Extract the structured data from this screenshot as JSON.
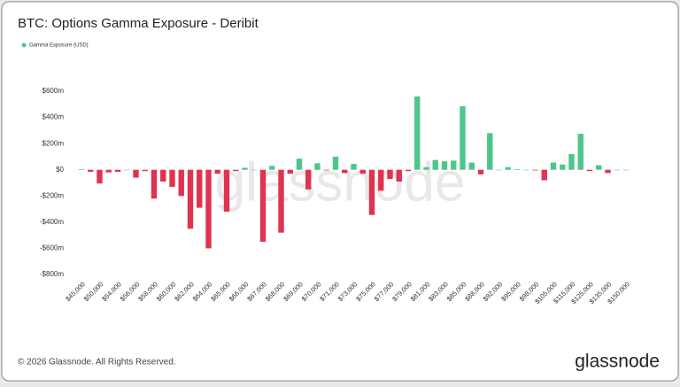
{
  "chart_data": {
    "type": "bar",
    "title": "BTC: Options Gamma Exposure - Deribit",
    "series": [
      {
        "name": "Gamma Exposure (USD)",
        "color": "#4dc68a",
        "values": [
          5,
          -15,
          -105,
          -20,
          -15,
          0,
          -60,
          -10,
          -220,
          -90,
          -130,
          -200,
          -450,
          -290,
          -600,
          -30,
          -320,
          -10,
          15,
          0,
          -550,
          30,
          -480,
          -30,
          85,
          -150,
          50,
          -5,
          100,
          -25,
          45,
          -30,
          -345,
          -160,
          -70,
          -90,
          -10,
          560,
          20,
          75,
          65,
          70,
          485,
          55,
          -35,
          280,
          0,
          20,
          5,
          0,
          -5,
          -80,
          55,
          40,
          120,
          275,
          -10,
          35,
          -25,
          0,
          0
        ]
      }
    ],
    "negative_color": "#e0334f",
    "categories": [
      "$45,000",
      null,
      "$50,000",
      null,
      "$54,000",
      null,
      "$56,000",
      null,
      "$58,000",
      null,
      "$60,000",
      null,
      "$62,000",
      null,
      "$64,000",
      null,
      "$65,000",
      null,
      "$66,000",
      null,
      "$67,000",
      null,
      "$68,000",
      null,
      "$69,000",
      null,
      "$70,000",
      null,
      "$71,000",
      null,
      "$73,000",
      null,
      "$75,000",
      null,
      "$77,000",
      null,
      "$79,000",
      null,
      "$81,000",
      null,
      "$83,000",
      null,
      "$85,000",
      null,
      "$88,000",
      null,
      "$92,000",
      null,
      "$95,000",
      null,
      "$98,000",
      null,
      "$105,000",
      null,
      "$115,000",
      null,
      "$125,000",
      null,
      "$135,000",
      null,
      "$150,000"
    ],
    "ylim": [
      -800,
      600
    ],
    "yticks": [
      {
        "value": 600,
        "label": "$600m"
      },
      {
        "value": 400,
        "label": "$400m"
      },
      {
        "value": 200,
        "label": "$200m"
      },
      {
        "value": 0,
        "label": "$0"
      },
      {
        "value": -200,
        "label": "-$200m"
      },
      {
        "value": -400,
        "label": "-$400m"
      },
      {
        "value": -600,
        "label": "-$600m"
      },
      {
        "value": -800,
        "label": "-$800m"
      }
    ],
    "grid": false
  },
  "footer": "© 2026 Glassnode. All Rights Reserved.",
  "logo": "glassnode",
  "watermark": "glassnode"
}
